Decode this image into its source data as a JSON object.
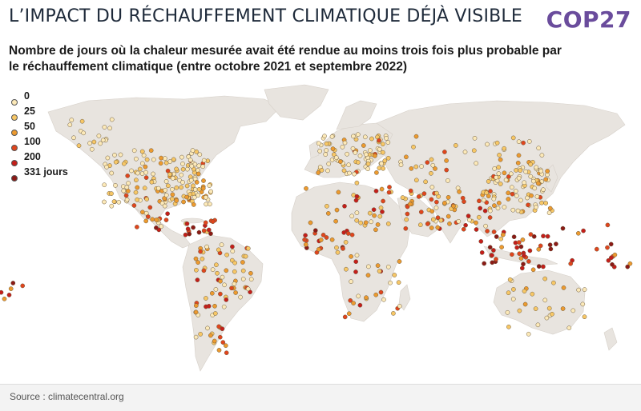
{
  "header": {
    "title": "L’IMPACT DU RÉCHAUFFEMENT CLIMATIQUE DÉJÀ VISIBLE",
    "logo_text": "COP27"
  },
  "subtitle": "Nombre de jours où la chaleur mesurée avait été rendue au moins trois fois plus probable par le réchauffement climatique (entre octobre 2021 et septembre 2022)",
  "legend": {
    "items": [
      {
        "label": "0",
        "color": "#fce9b8"
      },
      {
        "label": "25",
        "color": "#f7c766"
      },
      {
        "label": "50",
        "color": "#ec9a2f"
      },
      {
        "label": "100",
        "color": "#e0451d"
      },
      {
        "label": "200",
        "color": "#c41e1a"
      },
      {
        "label": "331 jours",
        "color": "#8b1a16"
      }
    ]
  },
  "colors": {
    "land": "#e8e4df",
    "ocean": "#ffffff"
  },
  "footer": {
    "source": "Source : climatecentral.org"
  }
}
